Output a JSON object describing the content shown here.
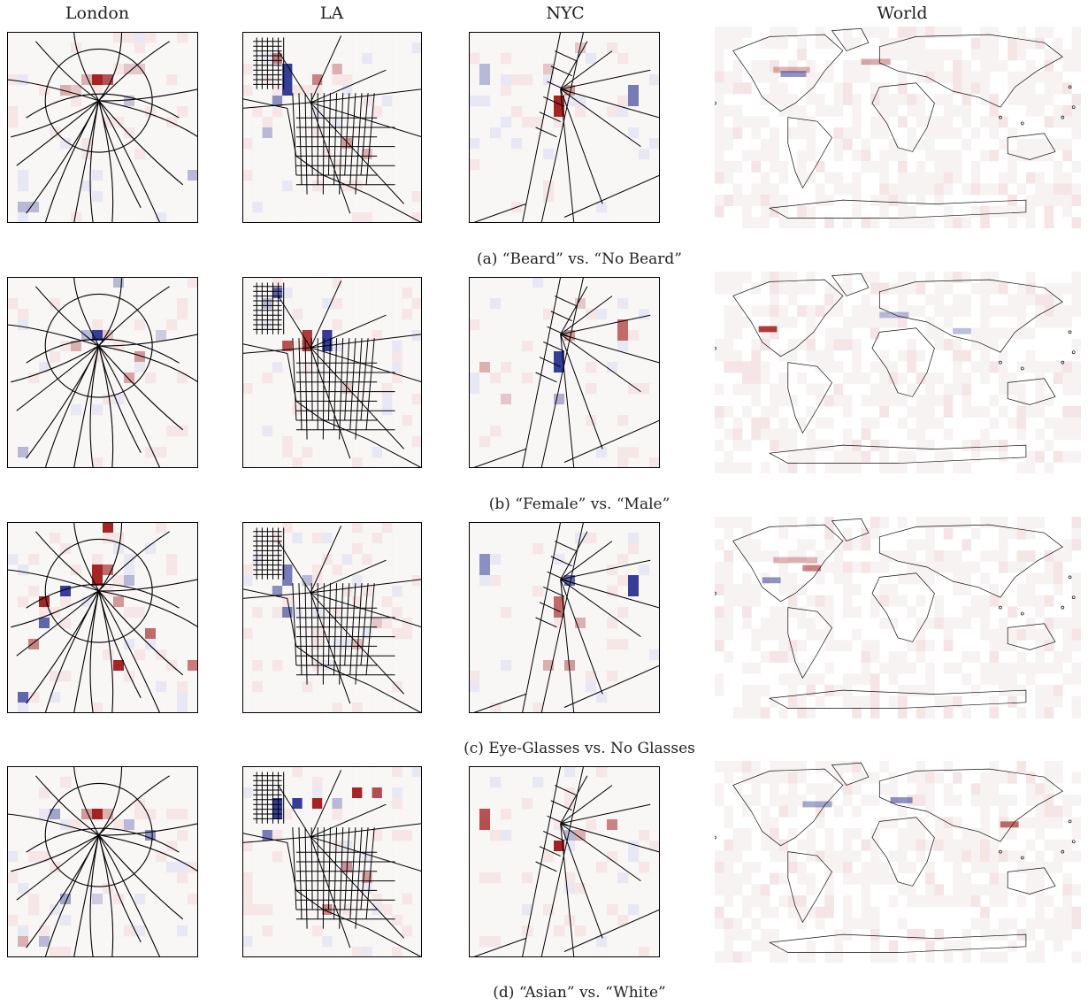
{
  "columns": [
    "London",
    "LA",
    "NYC",
    "World"
  ],
  "rows": [
    {
      "caption": "(a) “Beard” vs. “No Beard”"
    },
    {
      "caption": "(b) “Female” vs. “Male”"
    },
    {
      "caption": "(c) Eye-Glasses vs. No Glasses"
    },
    {
      "caption": "(d) “Asian” vs. “White”"
    }
  ],
  "colors": {
    "positive": "#9b0d0d",
    "negative": "#1f2a8c",
    "line": "#000000"
  }
}
